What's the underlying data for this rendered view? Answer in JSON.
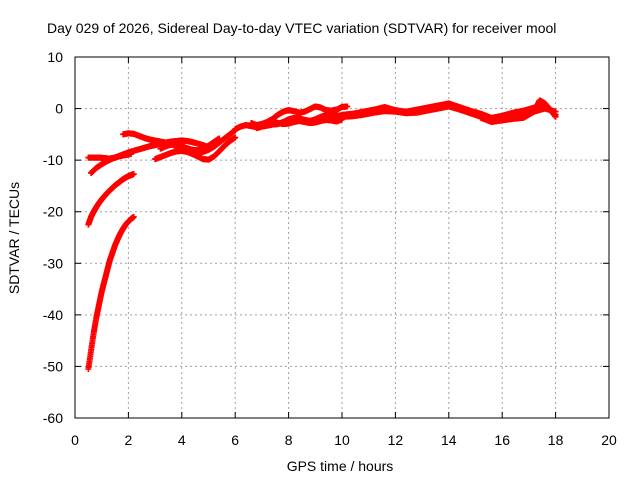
{
  "chart_data": {
    "type": "scatter",
    "title": "Day 029 of 2026, Sidereal Day-to-day VTEC variation (SDTVAR) for receiver mool",
    "xlabel": "GPS time / hours",
    "ylabel": "SDTVAR / TECUs",
    "xlim": [
      0,
      20
    ],
    "ylim": [
      -60,
      10
    ],
    "xticks": [
      0,
      2,
      4,
      6,
      8,
      10,
      12,
      14,
      16,
      18,
      20
    ],
    "yticks": [
      10,
      0,
      -10,
      -20,
      -30,
      -40,
      -50,
      -60
    ],
    "grid": true,
    "marker": "+",
    "color": "#ff0000",
    "series": [
      {
        "name": "s1",
        "x": [
          0.5,
          0.6,
          0.7,
          0.8,
          0.9,
          1.0,
          1.1,
          1.2,
          1.3,
          1.4,
          1.5,
          1.6,
          1.7,
          1.8,
          1.9,
          2.0,
          2.1,
          2.2
        ],
        "y": [
          -50.5,
          -47,
          -43.5,
          -40.5,
          -38,
          -35.5,
          -33.5,
          -31.5,
          -29.5,
          -28,
          -26.5,
          -25.3,
          -24.2,
          -23.3,
          -22.5,
          -21.9,
          -21.4,
          -21
        ]
      },
      {
        "name": "s2",
        "x": [
          0.5,
          0.6,
          0.7,
          0.8,
          0.9,
          1.0,
          1.1,
          1.2,
          1.3,
          1.4,
          1.5,
          1.6,
          1.7,
          1.8,
          1.9,
          2.0,
          2.1,
          2.2
        ],
        "y": [
          -22.5,
          -21,
          -20,
          -19.1,
          -18.3,
          -17.6,
          -17,
          -16.4,
          -15.9,
          -15.4,
          -14.9,
          -14.5,
          -14.1,
          -13.7,
          -13.4,
          -13.1,
          -12.9,
          -12.7
        ]
      },
      {
        "name": "s3",
        "x": [
          0.6,
          0.8,
          1.0,
          1.2,
          1.4,
          1.6,
          1.8,
          2.0,
          2.2,
          2.4,
          2.6,
          2.8,
          3.0,
          3.2,
          3.4,
          3.6,
          3.8,
          4.0,
          4.2,
          4.4,
          4.6,
          4.8,
          5.0
        ],
        "y": [
          -12.5,
          -11.5,
          -10.8,
          -10.2,
          -9.7,
          -9.3,
          -8.9,
          -8.5,
          -8.2,
          -7.9,
          -7.6,
          -7.3,
          -7.1,
          -6.8,
          -6.6,
          -6.4,
          -6.3,
          -6.2,
          -6.3,
          -6.5,
          -6.8,
          -7.1,
          -7.5
        ]
      },
      {
        "name": "s4",
        "x": [
          0.5,
          0.7,
          0.9,
          1.1,
          1.3,
          1.5,
          1.7,
          1.9,
          2.1
        ],
        "y": [
          -9.5,
          -9.5,
          -9.5,
          -9.6,
          -9.7,
          -9.5,
          -9.2,
          -9.0,
          -8.8
        ]
      },
      {
        "name": "s5",
        "x": [
          1.8,
          2.0,
          2.2,
          2.4,
          2.6,
          2.8,
          3.0,
          3.2,
          3.4,
          3.6,
          3.8,
          4.0,
          4.2,
          4.4,
          4.6,
          4.8,
          5.0,
          5.2,
          5.4,
          5.6,
          5.8,
          6.0
        ],
        "y": [
          -5,
          -4.8,
          -4.9,
          -5.3,
          -5.7,
          -6.0,
          -6.2,
          -6.4,
          -6.6,
          -6.9,
          -7.3,
          -7.7,
          -8.1,
          -8.4,
          -8.6,
          -8.4,
          -8.0,
          -7.4,
          -6.6,
          -5.8,
          -5.0,
          -4.2
        ]
      },
      {
        "name": "s6",
        "x": [
          3.0,
          3.2,
          3.4,
          3.6,
          3.8,
          4.0,
          4.2,
          4.4,
          4.6,
          4.8,
          5.0,
          5.2,
          5.4,
          5.6,
          5.8,
          6.0
        ],
        "y": [
          -9.8,
          -9.4,
          -9.0,
          -8.6,
          -8.3,
          -8.2,
          -8.4,
          -8.8,
          -9.3,
          -9.8,
          -9.9,
          -9.3,
          -8.3,
          -7.2,
          -6.3,
          -5.6
        ]
      },
      {
        "name": "s7",
        "x": [
          3.2,
          3.4,
          3.6,
          3.8,
          4.0,
          4.2,
          4.4,
          4.6,
          4.8,
          5.0,
          5.2,
          5.4
        ],
        "y": [
          -7.8,
          -7.3,
          -7.0,
          -7.0,
          -7.3,
          -7.7,
          -8.0,
          -8.1,
          -7.8,
          -7.2,
          -6.5,
          -5.8
        ]
      },
      {
        "name": "s8",
        "x": [
          6.6,
          6.8,
          7.0,
          7.2,
          7.4,
          7.6,
          7.8,
          8.0,
          8.2,
          8.4,
          8.6,
          8.8,
          9.0,
          9.2,
          9.4,
          9.6,
          9.8,
          10.0,
          10.2
        ],
        "y": [
          -2.8,
          -3.2,
          -3.0,
          -2.6,
          -2.0,
          -1.2,
          -0.6,
          -0.3,
          -0.5,
          -0.8,
          -0.6,
          -0.1,
          0.4,
          0.2,
          -0.3,
          -0.4,
          -0.2,
          0.3,
          0.4
        ]
      },
      {
        "name": "s9",
        "x": [
          6.8,
          7.0,
          7.2,
          7.4,
          7.6,
          7.8,
          8.0,
          8.2,
          8.4,
          8.6,
          8.8,
          9.0,
          9.2,
          9.4,
          9.6,
          9.8,
          10.0
        ],
        "y": [
          -3.8,
          -3.5,
          -3.3,
          -3.1,
          -3.0,
          -2.6,
          -2.1,
          -1.8,
          -1.9,
          -2.2,
          -2.4,
          -2.1,
          -1.6,
          -1.3,
          -1.2,
          -1.4,
          -1.3
        ]
      },
      {
        "name": "s10",
        "x": [
          6.0,
          6.2,
          6.4,
          6.6,
          6.8,
          7.0,
          7.2,
          7.4,
          7.6,
          7.8,
          8.0,
          8.2,
          8.4,
          8.6,
          8.8,
          9.0,
          9.2,
          9.4,
          9.6,
          9.8,
          10.0
        ],
        "y": [
          -4.0,
          -3.5,
          -3.2,
          -3.4,
          -3.6,
          -3.1,
          -2.7,
          -2.6,
          -2.8,
          -3.0,
          -2.9,
          -2.6,
          -2.4,
          -2.6,
          -2.8,
          -2.7,
          -2.4,
          -2.2,
          -2.3,
          -2.5,
          -2.1
        ]
      },
      {
        "name": "s11",
        "x": [
          10.0,
          10.4,
          10.8,
          11.2,
          11.6,
          12.0,
          12.4,
          12.8,
          13.2,
          13.6,
          14.0,
          14.4,
          14.8,
          15.2,
          15.6,
          16.0,
          16.4,
          16.8,
          17.2,
          17.6,
          18.0
        ],
        "y": [
          -1.2,
          -1.0,
          -0.6,
          -0.2,
          0.3,
          -0.3,
          -0.6,
          -0.2,
          0.2,
          0.6,
          1.0,
          0.3,
          -0.4,
          -1.0,
          -1.8,
          -1.4,
          -0.8,
          -0.4,
          0.2,
          0.4,
          -1.2
        ]
      },
      {
        "name": "s12",
        "x": [
          10.0,
          10.4,
          10.8,
          11.2,
          11.6,
          12.0,
          12.4,
          12.8,
          13.2,
          13.6,
          14.0,
          14.4,
          14.8,
          15.2,
          15.6,
          16.0,
          16.4,
          16.8,
          17.2,
          17.6,
          18.0
        ],
        "y": [
          -1.6,
          -1.5,
          -1.2,
          -0.8,
          -0.5,
          -0.6,
          -0.9,
          -0.8,
          -0.4,
          0.0,
          0.4,
          -0.2,
          -0.9,
          -1.6,
          -2.4,
          -2.1,
          -1.6,
          -1.2,
          -0.6,
          0.0,
          -0.6
        ]
      },
      {
        "name": "s13",
        "x": [
          15.2,
          15.6,
          16.0,
          16.4,
          16.8,
          17.2,
          17.4,
          17.6,
          17.8,
          18.0
        ],
        "y": [
          -1.8,
          -2.6,
          -2.3,
          -2.0,
          -1.8,
          -0.6,
          1.6,
          1.0,
          -0.2,
          -1.6
        ]
      }
    ]
  }
}
